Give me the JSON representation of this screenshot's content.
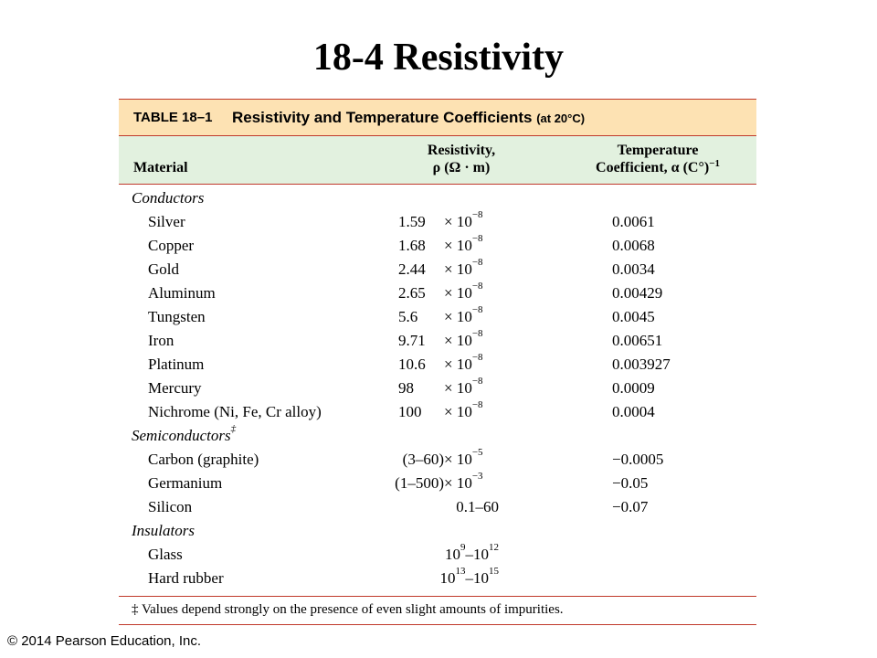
{
  "slide": {
    "title": "18-4 Resistivity",
    "copyright": "© 2014 Pearson Education, Inc."
  },
  "table": {
    "number": "TABLE 18–1",
    "title": "Resistivity and Temperature Coefficients",
    "title_note": "(at 20°C)",
    "headers": {
      "material": "Material",
      "resistivity_line1": "Resistivity,",
      "resistivity_line2": "ρ (Ω · m)",
      "coef_line1": "Temperature",
      "coef_line2": "Coefficient, α (C°)",
      "coef_exp": "−1"
    },
    "groups": [
      {
        "name": "Conductors",
        "name_mark": "",
        "rows": [
          {
            "material": "Silver",
            "mantissa": "1.59",
            "exponent": "−8",
            "coefficient": "0.0061"
          },
          {
            "material": "Copper",
            "mantissa": "1.68",
            "exponent": "−8",
            "coefficient": "0.0068"
          },
          {
            "material": "Gold",
            "mantissa": "2.44",
            "exponent": "−8",
            "coefficient": "0.0034"
          },
          {
            "material": "Aluminum",
            "mantissa": "2.65",
            "exponent": "−8",
            "coefficient": "0.00429"
          },
          {
            "material": "Tungsten",
            "mantissa": "5.6",
            "exponent": "−8",
            "coefficient": "0.0045"
          },
          {
            "material": "Iron",
            "mantissa": "9.71",
            "exponent": "−8",
            "coefficient": "0.00651"
          },
          {
            "material": "Platinum",
            "mantissa": "10.6",
            "exponent": "−8",
            "coefficient": "0.003927"
          },
          {
            "material": "Mercury",
            "mantissa": "98",
            "exponent": "−8",
            "coefficient": "0.0009"
          },
          {
            "material": "Nichrome (Ni, Fe, Cr alloy)",
            "mantissa": "100",
            "exponent": "−8",
            "coefficient": "0.0004"
          }
        ]
      },
      {
        "name": "Semiconductors",
        "name_mark": "‡",
        "rows": [
          {
            "material": "Carbon (graphite)",
            "mantissa": "(3–60)",
            "exponent": "−5",
            "coefficient": "−0.0005"
          },
          {
            "material": "Germanium",
            "mantissa": "(1–500)",
            "exponent": "−3",
            "coefficient": "−0.05"
          },
          {
            "material": "Silicon",
            "range": "0.1–60",
            "coefficient": "−0.07"
          }
        ]
      },
      {
        "name": "Insulators",
        "name_mark": "",
        "rows": [
          {
            "material": "Glass",
            "range_base1": "10",
            "range_exp1": "9",
            "range_base2": "10",
            "range_exp2": "12",
            "coefficient": ""
          },
          {
            "material": "Hard rubber",
            "range_base1": "10",
            "range_exp1": "13",
            "range_base2": "10",
            "range_exp2": "15",
            "coefficient": ""
          }
        ]
      }
    ],
    "times_ten": "× 10",
    "footnote": "‡ Values depend strongly on the presence of even slight amounts of impurities."
  },
  "colors": {
    "header_bg": "#fde2b3",
    "colhead_bg": "#e2f1df",
    "rule": "#c0392b"
  }
}
